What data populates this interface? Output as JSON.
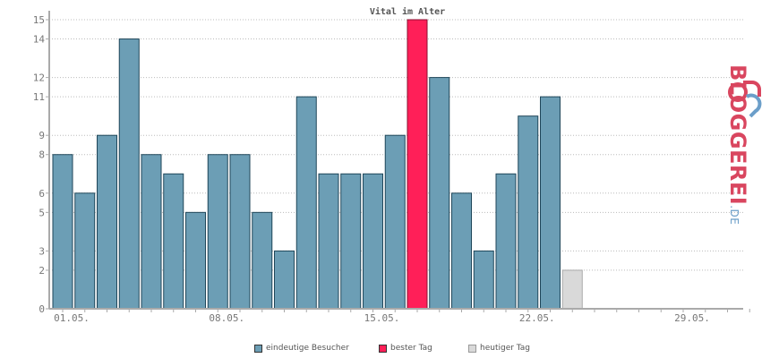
{
  "chart_data": {
    "type": "bar",
    "title": "Vital im Alter",
    "categories": [
      "01.05.",
      "02.05.",
      "03.05.",
      "04.05.",
      "05.05.",
      "06.05.",
      "07.05.",
      "08.05.",
      "09.05.",
      "10.05.",
      "11.05.",
      "12.05.",
      "13.05.",
      "14.05.",
      "15.05.",
      "16.05.",
      "17.05.",
      "18.05.",
      "19.05.",
      "20.05.",
      "21.05.",
      "22.05.",
      "23.05.",
      "24.05.",
      "25.05.",
      "26.05.",
      "27.05.",
      "28.05.",
      "29.05.",
      "30.05.",
      "31.05."
    ],
    "values": [
      8,
      6,
      9,
      14,
      8,
      7,
      5,
      8,
      8,
      5,
      3,
      11,
      7,
      7,
      7,
      9,
      15,
      12,
      6,
      3,
      7,
      10,
      11,
      2,
      0,
      0,
      0,
      0,
      0,
      0,
      0
    ],
    "x_tick_labels": [
      "01.05.",
      "08.05.",
      "15.05.",
      "22.05.",
      "29.05."
    ],
    "y_tick_labels": [
      "0",
      "2",
      "3",
      "5",
      "6",
      "8",
      "9",
      "11",
      "12",
      "14",
      "15"
    ],
    "ylim": [
      0,
      15
    ],
    "best_day_index": 16,
    "today_index": 23,
    "grid": true,
    "legend_position": "bottom",
    "legend": [
      "eindeutige Besucher",
      "bester Tag",
      "heutiger Tag"
    ],
    "colors": {
      "normal": "#6c9eb5",
      "best": "#ff1f58",
      "today": "#d9d9d9",
      "border": "#1f4659"
    }
  },
  "logo": {
    "text": "BLOGGEREI",
    "suffix": ".DE"
  }
}
